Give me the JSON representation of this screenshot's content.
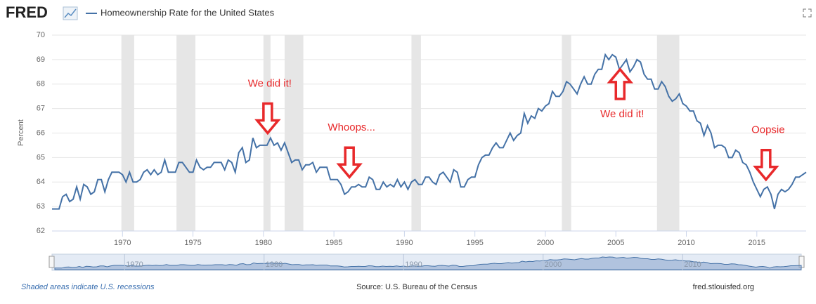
{
  "chart_data": {
    "type": "line",
    "logo": "FRED",
    "series": [
      {
        "name": "Homeownership Rate for the United States",
        "color": "#4572a7",
        "values": [
          62.9,
          62.9,
          62.9,
          63.4,
          63.5,
          63.2,
          63.3,
          63.8,
          63.3,
          63.9,
          63.8,
          63.5,
          63.6,
          64.1,
          64.1,
          63.6,
          64.1,
          64.4,
          64.4,
          64.4,
          64.3,
          64.0,
          64.4,
          64.0,
          64.0,
          64.1,
          64.4,
          64.5,
          64.3,
          64.5,
          64.3,
          64.4,
          64.9,
          64.4,
          64.4,
          64.4,
          64.8,
          64.8,
          64.6,
          64.4,
          64.4,
          64.9,
          64.6,
          64.5,
          64.6,
          64.6,
          64.8,
          64.8,
          64.8,
          64.5,
          64.9,
          64.8,
          64.4,
          65.2,
          65.4,
          64.8,
          64.9,
          65.8,
          65.4,
          65.5,
          65.5,
          65.5,
          65.8,
          65.5,
          65.6,
          65.3,
          65.6,
          65.2,
          64.8,
          64.9,
          64.9,
          64.5,
          64.7,
          64.7,
          64.8,
          64.4,
          64.6,
          64.6,
          64.6,
          64.1,
          64.1,
          64.1,
          63.9,
          63.5,
          63.6,
          63.8,
          63.8,
          63.9,
          63.8,
          63.8,
          64.2,
          64.1,
          63.7,
          63.7,
          64.0,
          63.8,
          63.9,
          63.8,
          64.1,
          63.8,
          64.0,
          63.7,
          64.0,
          64.1,
          63.9,
          63.9,
          64.2,
          64.2,
          64.0,
          63.9,
          64.3,
          64.4,
          64.2,
          64.0,
          64.5,
          64.4,
          63.8,
          63.8,
          64.1,
          64.2,
          64.2,
          64.7,
          65.0,
          65.1,
          65.1,
          65.4,
          65.6,
          65.4,
          65.4,
          65.7,
          66.0,
          65.7,
          65.9,
          66.0,
          66.8,
          66.4,
          66.7,
          66.6,
          67.0,
          66.9,
          67.1,
          67.2,
          67.7,
          67.5,
          67.5,
          67.7,
          68.1,
          68.0,
          67.8,
          67.6,
          68.0,
          68.3,
          68.0,
          68.0,
          68.4,
          68.6,
          68.6,
          69.2,
          69.0,
          69.2,
          69.1,
          68.6,
          68.8,
          69.0,
          68.5,
          68.7,
          69.0,
          68.9,
          68.4,
          68.2,
          68.2,
          67.8,
          67.8,
          68.1,
          67.9,
          67.5,
          67.3,
          67.4,
          67.6,
          67.2,
          67.1,
          66.9,
          66.9,
          66.5,
          66.4,
          65.9,
          66.3,
          66.0,
          65.4,
          65.5,
          65.5,
          65.4,
          65.0,
          65.0,
          65.3,
          65.2,
          64.8,
          64.7,
          64.4,
          64.0,
          63.7,
          63.4,
          63.7,
          63.8,
          63.5,
          62.9,
          63.5,
          63.7,
          63.6,
          63.7,
          63.9,
          64.2,
          64.2,
          64.3,
          64.4
        ]
      }
    ],
    "x": [
      1965,
      1965.25,
      1965.5,
      1965.75,
      1966,
      1966.25,
      1966.5,
      1966.75,
      1967,
      1967.25,
      1967.5,
      1967.75,
      1968,
      1968.25,
      1968.5,
      1968.75,
      1969,
      1969.25,
      1969.5,
      1969.75,
      1970,
      1970.25,
      1970.5,
      1970.75,
      1971,
      1971.25,
      1971.5,
      1971.75,
      1972,
      1972.25,
      1972.5,
      1972.75,
      1973,
      1973.25,
      1973.5,
      1973.75,
      1974,
      1974.25,
      1974.5,
      1974.75,
      1975,
      1975.25,
      1975.5,
      1975.75,
      1976,
      1976.25,
      1976.5,
      1976.75,
      1977,
      1977.25,
      1977.5,
      1977.75,
      1978,
      1978.25,
      1978.5,
      1978.75,
      1979,
      1979.25,
      1979.5,
      1979.75,
      1980,
      1980.25,
      1980.5,
      1980.75,
      1981,
      1981.25,
      1981.5,
      1981.75,
      1982,
      1982.25,
      1982.5,
      1982.75,
      1983,
      1983.25,
      1983.5,
      1983.75,
      1984,
      1984.25,
      1984.5,
      1984.75,
      1985,
      1985.25,
      1985.5,
      1985.75,
      1986,
      1986.25,
      1986.5,
      1986.75,
      1987,
      1987.25,
      1987.5,
      1987.75,
      1988,
      1988.25,
      1988.5,
      1988.75,
      1989,
      1989.25,
      1989.5,
      1989.75,
      1990,
      1990.25,
      1990.5,
      1990.75,
      1991,
      1991.25,
      1991.5,
      1991.75,
      1992,
      1992.25,
      1992.5,
      1992.75,
      1993,
      1993.25,
      1993.5,
      1993.75,
      1994,
      1994.25,
      1994.5,
      1994.75,
      1995,
      1995.25,
      1995.5,
      1995.75,
      1996,
      1996.25,
      1996.5,
      1996.75,
      1997,
      1997.25,
      1997.5,
      1997.75,
      1998,
      1998.25,
      1998.5,
      1998.75,
      1999,
      1999.25,
      1999.5,
      1999.75,
      2000,
      2000.25,
      2000.5,
      2000.75,
      2001,
      2001.25,
      2001.5,
      2001.75,
      2002,
      2002.25,
      2002.5,
      2002.75,
      2003,
      2003.25,
      2003.5,
      2003.75,
      2004,
      2004.25,
      2004.5,
      2004.75,
      2005,
      2005.25,
      2005.5,
      2005.75,
      2006,
      2006.25,
      2006.5,
      2006.75,
      2007,
      2007.25,
      2007.5,
      2007.75,
      2008,
      2008.25,
      2008.5,
      2008.75,
      2009,
      2009.25,
      2009.5,
      2009.75,
      2010,
      2010.25,
      2010.5,
      2010.75,
      2011,
      2011.25,
      2011.5,
      2011.75,
      2012,
      2012.25,
      2012.5,
      2012.75,
      2013,
      2013.25,
      2013.5,
      2013.75,
      2014,
      2014.25,
      2014.5,
      2014.75,
      2015,
      2015.25,
      2015.5,
      2015.75,
      2016,
      2016.25,
      2016.5,
      2016.75,
      2017,
      2017.25,
      2017.5,
      2017.75,
      2018,
      2018.25,
      2018.5
    ],
    "xlim": [
      1965,
      2018.5
    ],
    "xticks": [
      1970,
      1975,
      1980,
      1985,
      1990,
      1995,
      2000,
      2005,
      2010,
      2015
    ],
    "ylim": [
      62,
      70
    ],
    "yticks": [
      62,
      63,
      64,
      65,
      66,
      67,
      68,
      69,
      70
    ],
    "ylabel": "Percent",
    "grid": true,
    "recessions": [
      [
        1969.92,
        1970.83
      ],
      [
        1973.83,
        1975.17
      ],
      [
        1980.0,
        1980.5
      ],
      [
        1981.5,
        1982.83
      ],
      [
        1990.5,
        1991.17
      ],
      [
        2001.17,
        2001.83
      ],
      [
        2007.92,
        2009.5
      ]
    ],
    "recession_color": "#e6e6e6",
    "annotations": [
      {
        "text": "We did it!",
        "x": 1980.3,
        "y": 66.0,
        "direction": "down"
      },
      {
        "text": "Whoops...",
        "x": 1986.1,
        "y": 64.2,
        "direction": "down"
      },
      {
        "text": "We did it!",
        "x": 2005.3,
        "y": 68.6,
        "direction": "up"
      },
      {
        "text": "Oopsie",
        "x": 2015.65,
        "y": 64.1,
        "direction": "down"
      }
    ],
    "annotation_color": "#e8292b",
    "navigator_ticks": [
      1970,
      1980,
      1990,
      2000,
      2010
    ],
    "footer_note": "Shaded areas indicate U.S. recessions",
    "source": "Source: U.S. Bureau of the Census",
    "site": "fred.stlouisfed.org"
  }
}
